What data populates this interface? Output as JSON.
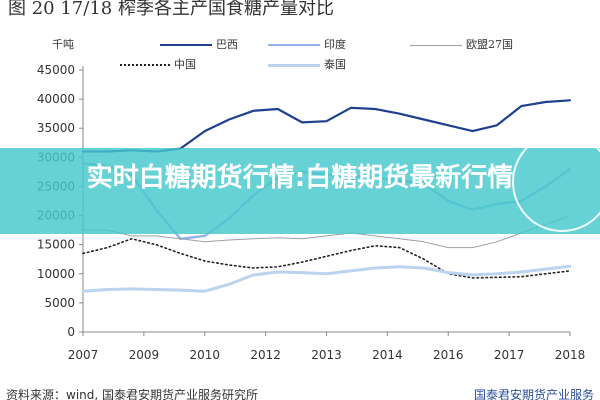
{
  "header": {
    "title_text": "图 20 17/18 榨季各主产国食糖产量对比"
  },
  "banner": {
    "headline": "实时白糖期货行情:白糖期货最新行情"
  },
  "footer": {
    "source_text": "资料来源：wind, 国泰君安期货产业服务研究所",
    "watermark_text": "国泰君安期货产业服务"
  },
  "chart_data": {
    "type": "line",
    "unit_label": "千吨",
    "x_ticks": [
      "2007",
      "2009",
      "2010",
      "2012",
      "2013",
      "2014",
      "2016",
      "2017",
      "2018"
    ],
    "ylim": [
      0,
      45000
    ],
    "y_ticks": [
      0,
      5000,
      10000,
      15000,
      20000,
      25000,
      30000,
      35000,
      40000,
      45000
    ],
    "grid": false,
    "legend_position": "top",
    "colors": {
      "brazil": "#1f3f8f",
      "india": "#8fb4e8",
      "eu27": "#9aa0a6",
      "china": "#222222",
      "thailand": "#bcd3f0"
    },
    "series": [
      {
        "name": "巴西",
        "key": "brazil",
        "style": "solid",
        "x": [
          0,
          0.4,
          0.8,
          1.2,
          1.6,
          2.0,
          2.4,
          2.8,
          3.2,
          3.6,
          4.0,
          4.4,
          4.8,
          5.2,
          5.6,
          6.0,
          6.4,
          6.8,
          7.2,
          7.6,
          8.0
        ],
        "values": [
          31000,
          31000,
          31200,
          31000,
          31500,
          34500,
          36500,
          38000,
          38300,
          36000,
          36200,
          38500,
          38300,
          37500,
          36500,
          35500,
          34500,
          35500,
          38800,
          39500,
          39800
        ]
      },
      {
        "name": "印度",
        "key": "india",
        "style": "solid",
        "x": [
          0,
          0.4,
          0.8,
          1.2,
          1.6,
          2.0,
          2.4,
          2.8,
          3.2,
          3.6,
          4.0,
          4.4,
          4.8,
          5.2,
          5.6,
          6.0,
          6.4,
          6.8,
          7.2,
          7.6,
          8.0
        ],
        "values": [
          29000,
          28500,
          27000,
          21000,
          16000,
          16500,
          19500,
          23500,
          26500,
          27500,
          27000,
          26800,
          26500,
          26000,
          25500,
          22500,
          21000,
          22000,
          22500,
          25000,
          28000
        ]
      },
      {
        "name": "欧盟27国",
        "key": "eu27",
        "style": "solid",
        "x": [
          0,
          0.4,
          0.8,
          1.2,
          1.6,
          2.0,
          2.4,
          2.8,
          3.2,
          3.6,
          4.0,
          4.4,
          4.8,
          5.2,
          5.6,
          6.0,
          6.4,
          6.8,
          7.2,
          7.6,
          8.0
        ],
        "values": [
          17500,
          17500,
          16500,
          16500,
          16000,
          15500,
          15800,
          16000,
          16200,
          16000,
          16500,
          17000,
          16500,
          16000,
          15500,
          14500,
          14500,
          15500,
          17000,
          18500,
          20000
        ]
      },
      {
        "name": "中国",
        "key": "china",
        "style": "dotted",
        "x": [
          0,
          0.4,
          0.8,
          1.2,
          1.6,
          2.0,
          2.4,
          2.8,
          3.2,
          3.6,
          4.0,
          4.4,
          4.8,
          5.2,
          5.6,
          6.0,
          6.4,
          6.8,
          7.2,
          7.6,
          8.0
        ],
        "values": [
          13500,
          14500,
          16000,
          15000,
          13500,
          12200,
          11500,
          11000,
          11200,
          12000,
          13000,
          14000,
          14800,
          14500,
          12500,
          10000,
          9300,
          9400,
          9500,
          10000,
          10500
        ]
      },
      {
        "name": "泰国",
        "key": "thailand",
        "style": "solid",
        "x": [
          0,
          0.4,
          0.8,
          1.2,
          1.6,
          2.0,
          2.4,
          2.8,
          3.2,
          3.6,
          4.0,
          4.4,
          4.8,
          5.2,
          5.6,
          6.0,
          6.4,
          6.8,
          7.2,
          7.6,
          8.0
        ],
        "values": [
          7000,
          7300,
          7400,
          7300,
          7200,
          7000,
          8200,
          9800,
          10300,
          10200,
          10000,
          10500,
          11000,
          11200,
          11000,
          10200,
          9800,
          10000,
          10300,
          10800,
          11300
        ]
      }
    ]
  }
}
